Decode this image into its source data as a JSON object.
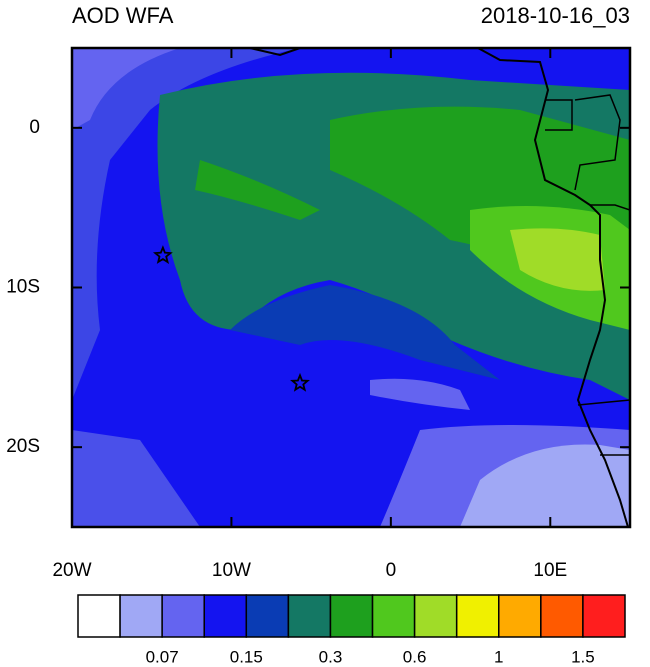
{
  "header": {
    "title": "AOD WFA",
    "timestamp": "2018-10-16_03"
  },
  "map": {
    "lonlim": [
      -20,
      15
    ],
    "latlim": [
      -25,
      5
    ],
    "xticks": [
      {
        "value": -20,
        "label": "20W"
      },
      {
        "value": -10,
        "label": "10W"
      },
      0,
      {
        "value": 10,
        "label": "10E"
      }
    ],
    "yticks": [
      0,
      {
        "value": -10,
        "label": "10S"
      },
      {
        "value": -20,
        "label": "20S"
      }
    ],
    "markers": [
      {
        "lon": -14.3,
        "lat": -8
      },
      {
        "lon": -5.7,
        "lat": -16
      }
    ]
  },
  "colorbar": {
    "colors": [
      "#ffffff",
      "#a0a8f5",
      "#6464f0",
      "#1414f0",
      "#0a3cb4",
      "#147864",
      "#1ea01e",
      "#50c81e",
      "#a0dc28",
      "#f0f000",
      "#ffaa00",
      "#ff5a00",
      "#ff1e1e"
    ],
    "labels": [
      "0.07",
      "0.15",
      "0.3",
      "0.6",
      "1",
      "1.5"
    ]
  }
}
